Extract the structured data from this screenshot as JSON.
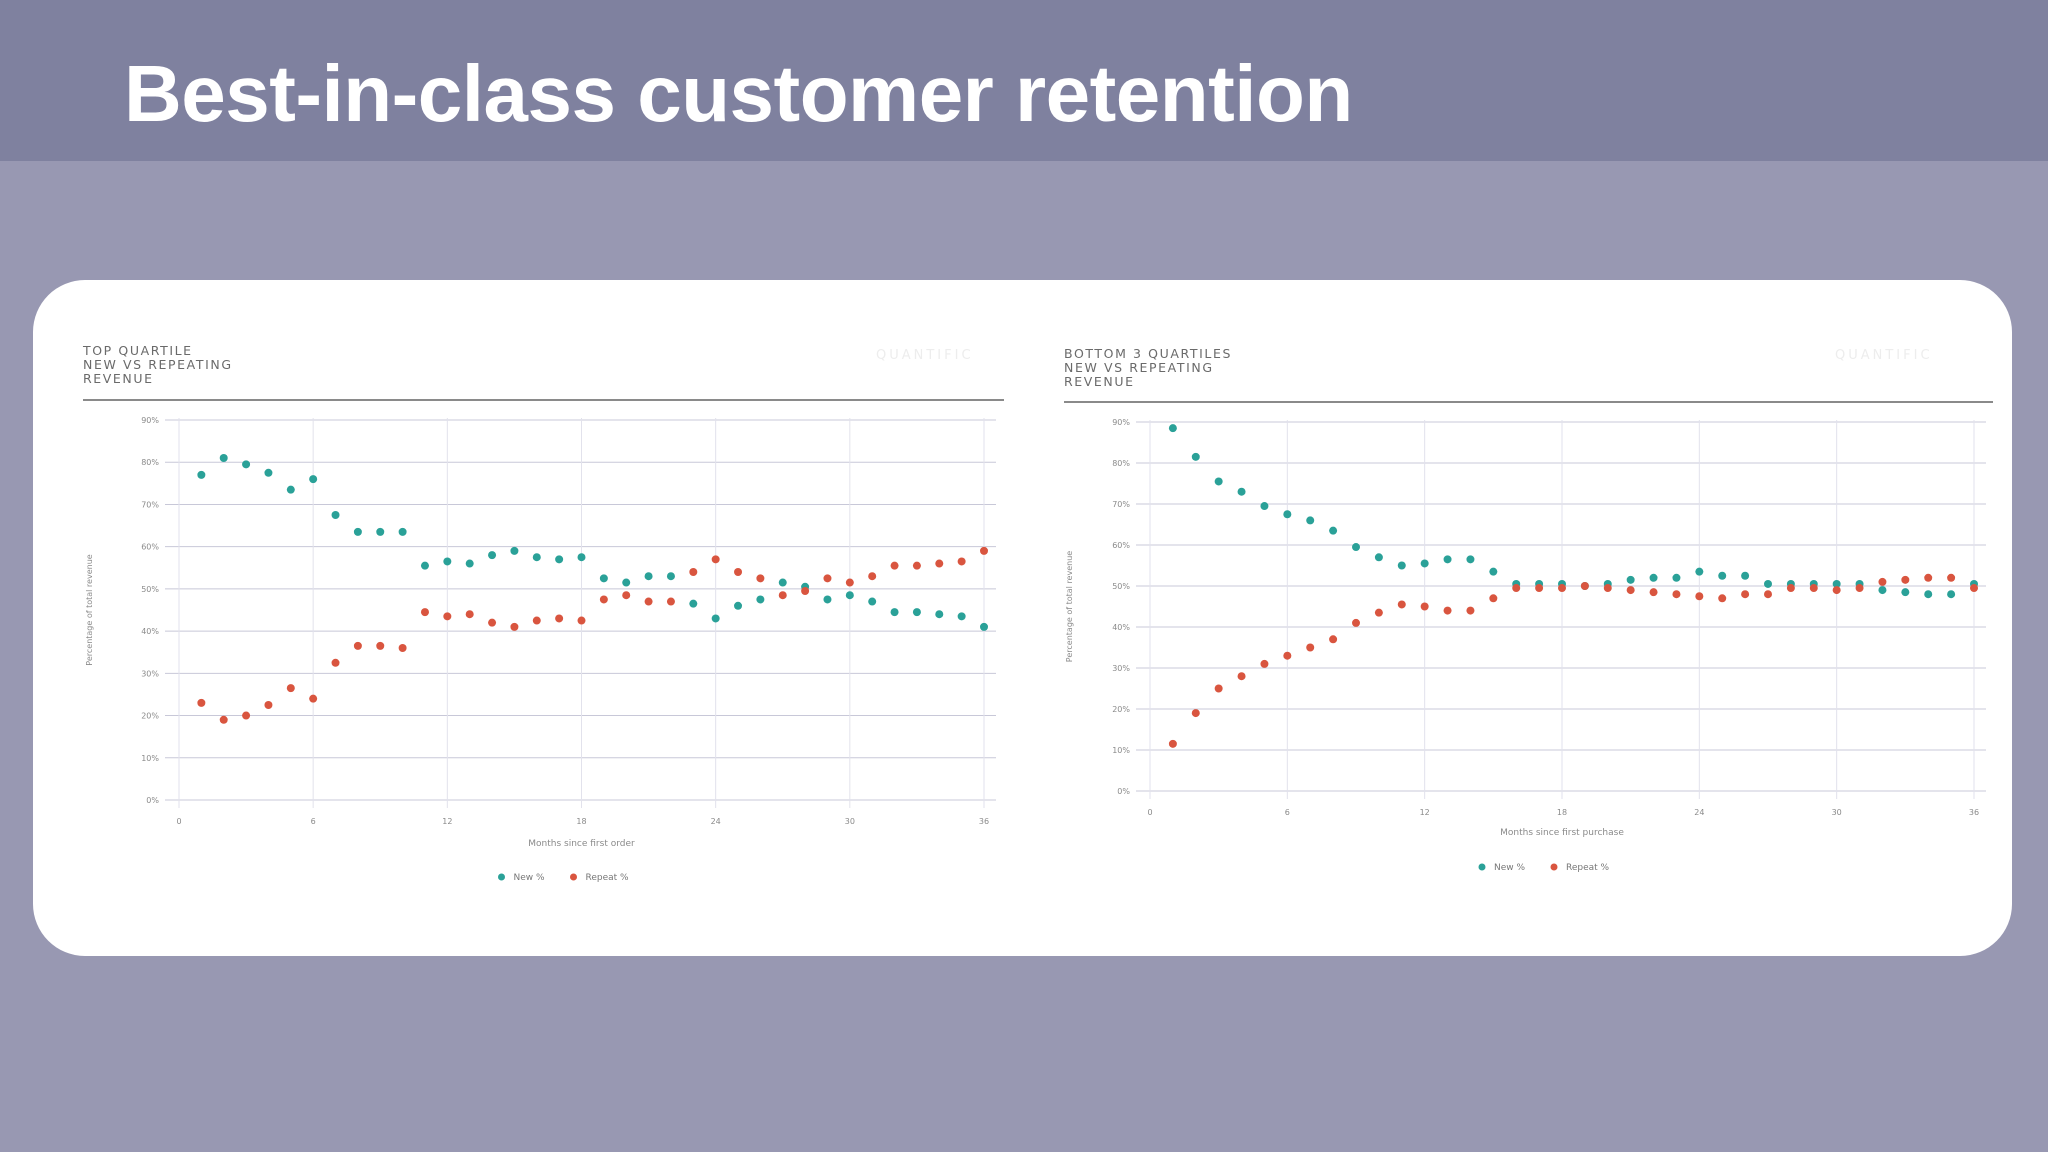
{
  "page": {
    "title": "Best-in-class customer retention"
  },
  "colors": {
    "new": "#2aa198",
    "repeat": "#d9553f",
    "grid": "#c8c8d8",
    "header_bg": "#7f819f",
    "page_bg": "#9898b2"
  },
  "chart_data": [
    {
      "type": "scatter",
      "title": "TOP QUARTILE\nNEW VS REPEATING\nREVENUE",
      "watermark": "QUANTIFIC",
      "xlabel": "Months since first order",
      "ylabel": "Percentage of total revenue",
      "xlim": [
        0,
        36
      ],
      "ylim": [
        0,
        90
      ],
      "x_ticks": [
        "0",
        "6",
        "12",
        "18",
        "24",
        "30",
        "36"
      ],
      "y_ticks": [
        "0%",
        "10%",
        "20%",
        "30%",
        "40%",
        "50%",
        "60%",
        "70%",
        "80%",
        "90%"
      ],
      "legend": "bottom-center",
      "series": [
        {
          "name": "New %",
          "x": [
            1,
            2,
            3,
            4,
            5,
            6,
            7,
            8,
            9,
            10,
            11,
            12,
            13,
            14,
            15,
            16,
            17,
            18,
            19,
            20,
            21,
            22,
            23,
            24,
            25,
            26,
            27,
            28,
            29,
            30,
            31,
            32,
            33,
            34,
            35,
            36
          ],
          "values": [
            77,
            81,
            79.5,
            77.5,
            73.5,
            76,
            67.5,
            63.5,
            63.5,
            63.5,
            55.5,
            56.5,
            56,
            58,
            59,
            57.5,
            57,
            57.5,
            52.5,
            51.5,
            53,
            53,
            46.5,
            43,
            46,
            47.5,
            51.5,
            50.5,
            47.5,
            48.5,
            47,
            44.5,
            44.5,
            44,
            43.5,
            41
          ]
        },
        {
          "name": "Repeat %",
          "x": [
            1,
            2,
            3,
            4,
            5,
            6,
            7,
            8,
            9,
            10,
            11,
            12,
            13,
            14,
            15,
            16,
            17,
            18,
            19,
            20,
            21,
            22,
            23,
            24,
            25,
            26,
            27,
            28,
            29,
            30,
            31,
            32,
            33,
            34,
            35,
            36
          ],
          "values": [
            23,
            19,
            20,
            22.5,
            26.5,
            24,
            32.5,
            36.5,
            36.5,
            36,
            44.5,
            43.5,
            44,
            42,
            41,
            42.5,
            43,
            42.5,
            47.5,
            48.5,
            47,
            47,
            54,
            57,
            54,
            52.5,
            48.5,
            49.5,
            52.5,
            51.5,
            53,
            55.5,
            55.5,
            56,
            56.5,
            59
          ]
        }
      ]
    },
    {
      "type": "scatter",
      "title": "BOTTOM 3 QUARTILES\nNEW VS REPEATING\nREVENUE",
      "watermark": "QUANTIFIC",
      "xlabel": "Months since first purchase",
      "ylabel": "Percentage of total revenue",
      "xlim": [
        0,
        36
      ],
      "ylim": [
        0,
        90
      ],
      "x_ticks": [
        "0",
        "6",
        "12",
        "18",
        "24",
        "30",
        "36"
      ],
      "y_ticks": [
        "0%",
        "10%",
        "20%",
        "30%",
        "40%",
        "50%",
        "60%",
        "70%",
        "80%",
        "90%"
      ],
      "legend": "bottom-center",
      "series": [
        {
          "name": "New %",
          "x": [
            1,
            2,
            3,
            4,
            5,
            6,
            7,
            8,
            9,
            10,
            11,
            12,
            13,
            14,
            15,
            16,
            17,
            18,
            19,
            20,
            21,
            22,
            23,
            24,
            25,
            26,
            27,
            28,
            29,
            30,
            31,
            32,
            33,
            34,
            35,
            36
          ],
          "values": [
            88.5,
            81.5,
            75.5,
            73,
            69.5,
            67.5,
            66,
            63.5,
            59.5,
            57,
            55,
            55.5,
            56.5,
            56.5,
            53.5,
            50.5,
            50.5,
            50.5,
            50,
            50.5,
            51.5,
            52,
            52,
            53.5,
            52.5,
            52.5,
            50.5,
            50.5,
            50.5,
            50.5,
            50.5,
            49,
            48.5,
            48,
            48,
            50.5
          ]
        },
        {
          "name": "Repeat %",
          "x": [
            1,
            2,
            3,
            4,
            5,
            6,
            7,
            8,
            9,
            10,
            11,
            12,
            13,
            14,
            15,
            16,
            17,
            18,
            19,
            20,
            21,
            22,
            23,
            24,
            25,
            26,
            27,
            28,
            29,
            30,
            31,
            32,
            33,
            34,
            35,
            36
          ],
          "values": [
            11.5,
            19,
            25,
            28,
            31,
            33,
            35,
            37,
            41,
            43.5,
            45.5,
            45,
            44,
            44,
            47,
            49.5,
            49.5,
            49.5,
            50,
            49.5,
            49,
            48.5,
            48,
            47.5,
            47,
            48,
            48,
            49.5,
            49.5,
            49,
            49.5,
            51,
            51.5,
            52,
            52,
            49.5
          ]
        }
      ]
    }
  ]
}
